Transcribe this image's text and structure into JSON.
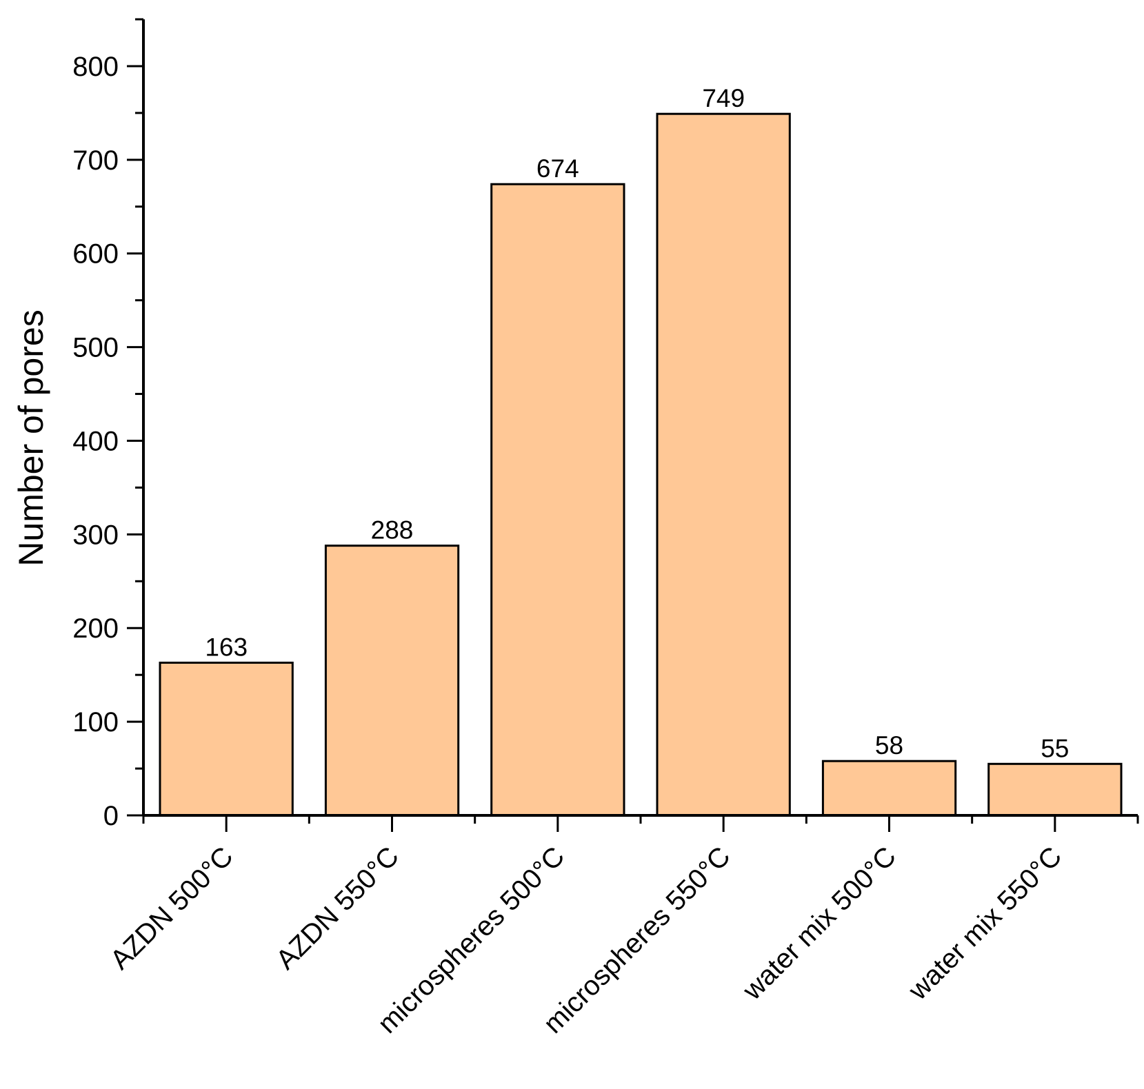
{
  "chart_data": {
    "type": "bar",
    "categories": [
      "AZDN 500°C",
      "AZDN 550°C",
      "microspheres 500°C",
      "microspheres 550°C",
      "water mix 500°C",
      "water mix 550°C"
    ],
    "values": [
      163,
      288,
      674,
      749,
      58,
      55
    ],
    "data_labels": [
      "163",
      "288",
      "674",
      "749",
      "58",
      "55"
    ],
    "ylabel": "Number of pores",
    "xlabel": "",
    "ylim": [
      0,
      850
    ],
    "yticks": [
      0,
      100,
      200,
      300,
      400,
      500,
      600,
      700,
      800
    ],
    "grid": false,
    "bar_color": "#FFC896",
    "bar_edge_color": "#000000"
  }
}
